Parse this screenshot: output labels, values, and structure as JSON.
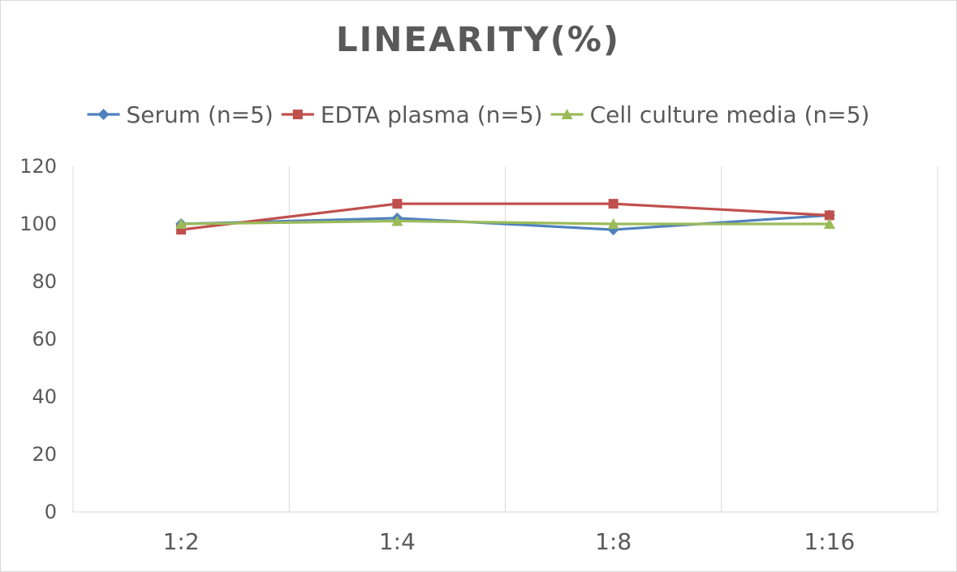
{
  "chart_data": {
    "type": "line",
    "title": "LINEARITY(%)",
    "categories": [
      "1:2",
      "1:4",
      "1:8",
      "1:16"
    ],
    "ylim": [
      0,
      120
    ],
    "yticks": [
      0,
      20,
      40,
      60,
      80,
      100,
      120
    ],
    "grid": "vertical",
    "legend_position": "top",
    "series": [
      {
        "name": "Serum (n=5)",
        "values": [
          100,
          102,
          98,
          103
        ],
        "color": "#4f81bd",
        "marker": "diamond"
      },
      {
        "name": "EDTA plasma (n=5)",
        "values": [
          98,
          107,
          107,
          103
        ],
        "color": "#c0504d",
        "marker": "square"
      },
      {
        "name": "Cell culture media (n=5)",
        "values": [
          100,
          101,
          100,
          100
        ],
        "color": "#9bbb59",
        "marker": "triangle"
      }
    ]
  }
}
